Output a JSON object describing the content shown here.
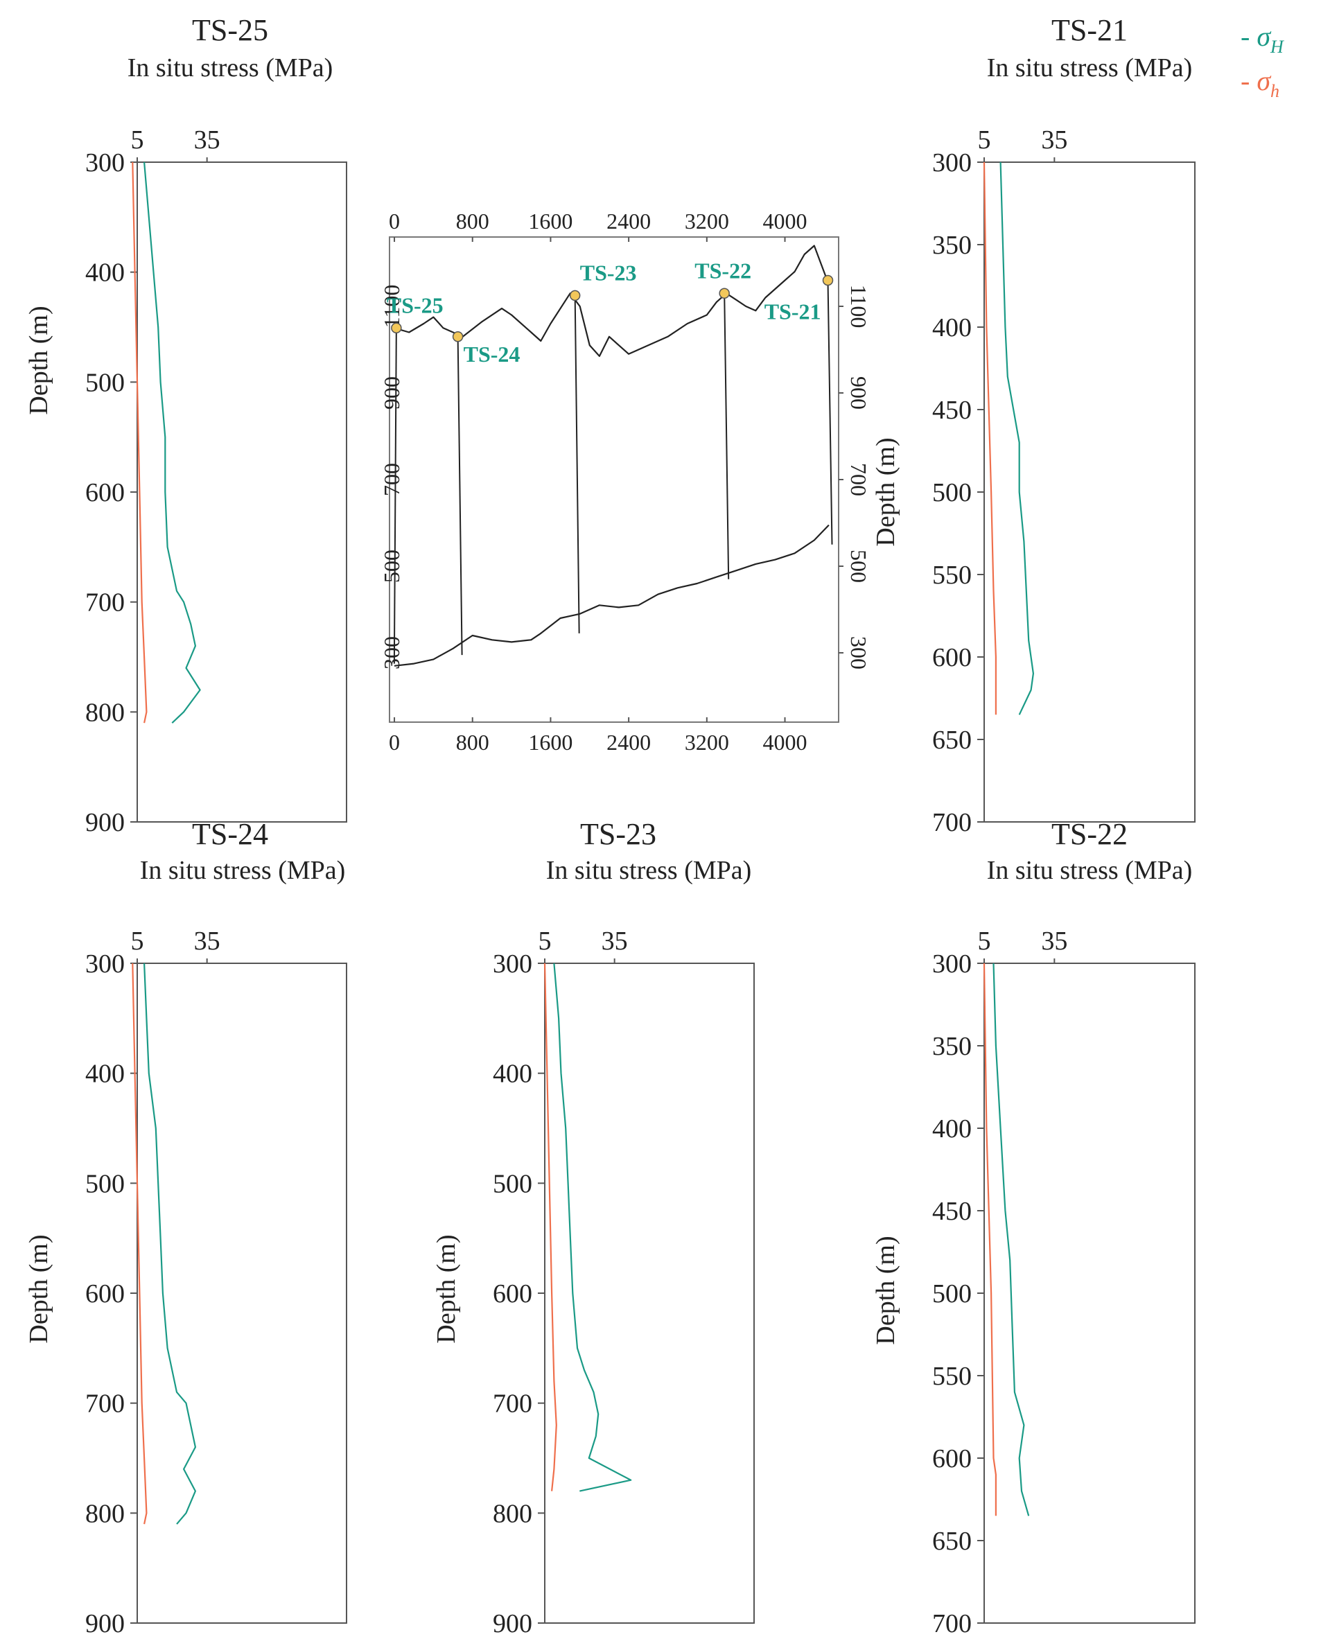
{
  "colors": {
    "sigma_H": "#1a9a86",
    "sigma_h": "#ef6f4c",
    "axis": "#333333",
    "profile": "#222222",
    "marker": "#f2c75a"
  },
  "legend": {
    "sigma_H": "- σ",
    "sigma_H_sub": "H",
    "sigma_h": "- σ",
    "sigma_h_sub": "h"
  },
  "chart_data": [
    {
      "type": "line",
      "id": "ts25",
      "title": "TS-25",
      "xlabel": "In situ stress (MPa)",
      "ylabel": "Depth (m)",
      "x_ticks": [
        "5",
        "35"
      ],
      "y_ticks": [
        "300",
        "400",
        "500",
        "600",
        "700",
        "800",
        "900"
      ],
      "xlim": [
        5,
        95
      ],
      "ylim": [
        300,
        900
      ],
      "y_inverted": true,
      "series": [
        {
          "name": "σH",
          "depth": [
            300,
            350,
            400,
            450,
            500,
            550,
            600,
            650,
            690,
            700,
            720,
            740,
            760,
            780,
            800,
            810
          ],
          "stress": [
            8,
            10,
            12,
            14,
            15,
            17,
            17,
            18,
            22,
            25,
            28,
            30,
            26,
            32,
            25,
            20
          ]
        },
        {
          "name": "σh",
          "depth": [
            300,
            400,
            500,
            600,
            700,
            750,
            800,
            810
          ],
          "stress": [
            3,
            4,
            5,
            6,
            7,
            8,
            9,
            8
          ]
        }
      ]
    },
    {
      "type": "line",
      "id": "ts21",
      "title": "TS-21",
      "xlabel": "In situ stress (MPa)",
      "ylabel": "Depth (m)",
      "x_ticks": [
        "5",
        "35"
      ],
      "y_ticks": [
        "300",
        "350",
        "400",
        "450",
        "500",
        "550",
        "600",
        "650",
        "700"
      ],
      "xlim": [
        5,
        95
      ],
      "ylim": [
        300,
        700
      ],
      "y_inverted": true,
      "series": [
        {
          "name": "σH",
          "depth": [
            300,
            350,
            400,
            430,
            470,
            500,
            530,
            560,
            590,
            610,
            620,
            635
          ],
          "stress": [
            12,
            13,
            14,
            15,
            20,
            20,
            22,
            23,
            24,
            26,
            25,
            20
          ]
        },
        {
          "name": "σh",
          "depth": [
            300,
            400,
            500,
            560,
            600,
            635
          ],
          "stress": [
            5,
            6,
            8,
            9,
            10,
            10
          ]
        }
      ]
    },
    {
      "type": "line",
      "id": "ts24",
      "title": "TS-24",
      "xlabel": "In situ stress (MPa)",
      "ylabel": "Depth (m)",
      "x_ticks": [
        "5",
        "35"
      ],
      "y_ticks": [
        "300",
        "400",
        "500",
        "600",
        "700",
        "800",
        "900"
      ],
      "xlim": [
        5,
        95
      ],
      "ylim": [
        300,
        900
      ],
      "y_inverted": true,
      "series": [
        {
          "name": "σH",
          "depth": [
            300,
            350,
            400,
            450,
            500,
            550,
            600,
            650,
            690,
            700,
            720,
            740,
            760,
            780,
            800,
            810
          ],
          "stress": [
            8,
            9,
            10,
            13,
            14,
            15,
            16,
            18,
            22,
            26,
            28,
            30,
            25,
            30,
            26,
            22
          ]
        },
        {
          "name": "σh",
          "depth": [
            300,
            400,
            500,
            600,
            700,
            750,
            800,
            810
          ],
          "stress": [
            3,
            4,
            5,
            6,
            7,
            8,
            9,
            8
          ]
        }
      ]
    },
    {
      "type": "line",
      "id": "ts23",
      "title": "TS-23",
      "xlabel": "In situ stress (MPa)",
      "ylabel": "Depth (m)",
      "x_ticks": [
        "5",
        "35"
      ],
      "y_ticks": [
        "300",
        "400",
        "500",
        "600",
        "700",
        "800",
        "900"
      ],
      "xlim": [
        5,
        95
      ],
      "ylim": [
        300,
        900
      ],
      "y_inverted": true,
      "series": [
        {
          "name": "σH",
          "depth": [
            300,
            350,
            400,
            450,
            500,
            550,
            600,
            650,
            670,
            690,
            710,
            730,
            750,
            770,
            780
          ],
          "stress": [
            9,
            11,
            12,
            14,
            15,
            16,
            17,
            19,
            22,
            26,
            28,
            27,
            24,
            42,
            20
          ]
        },
        {
          "name": "σh",
          "depth": [
            300,
            400,
            500,
            600,
            680,
            720,
            760,
            780
          ],
          "stress": [
            5,
            6,
            7,
            8,
            9,
            10,
            9,
            8
          ]
        }
      ]
    },
    {
      "type": "line",
      "id": "ts22",
      "title": "TS-22",
      "xlabel": "In situ stress (MPa)",
      "ylabel": "Depth (m)",
      "x_ticks": [
        "5",
        "35"
      ],
      "y_ticks": [
        "300",
        "350",
        "400",
        "450",
        "500",
        "550",
        "600",
        "650",
        "700"
      ],
      "xlim": [
        5,
        95
      ],
      "ylim": [
        300,
        700
      ],
      "y_inverted": true,
      "series": [
        {
          "name": "σH",
          "depth": [
            300,
            350,
            400,
            450,
            480,
            520,
            560,
            580,
            600,
            620,
            635
          ],
          "stress": [
            9,
            10,
            12,
            14,
            16,
            17,
            18,
            22,
            20,
            21,
            24
          ]
        },
        {
          "name": "σh",
          "depth": [
            300,
            400,
            500,
            600,
            610,
            635
          ],
          "stress": [
            5,
            6,
            8,
            9,
            10,
            10
          ]
        }
      ]
    },
    {
      "type": "line",
      "id": "cross_section",
      "x_ticks": [
        "0",
        "800",
        "1600",
        "2400",
        "3200",
        "4000"
      ],
      "y_ticks": [
        "300",
        "500",
        "700",
        "900",
        "1100"
      ],
      "xlim": [
        -50,
        4550
      ],
      "ylim": [
        140,
        1260
      ],
      "surface": {
        "x": [
          0,
          150,
          300,
          400,
          500,
          700,
          900,
          1100,
          1200,
          1400,
          1500,
          1600,
          1800,
          1900,
          2000,
          2100,
          2200,
          2300,
          2400,
          2600,
          2800,
          3000,
          3200,
          3300,
          3400,
          3500,
          3600,
          3700,
          3800,
          3900,
          4000,
          4100,
          4200,
          4300,
          4450
        ],
        "y": [
          1050,
          1040,
          1060,
          1075,
          1050,
          1030,
          1065,
          1095,
          1080,
          1040,
          1020,
          1060,
          1130,
          1100,
          1010,
          985,
          1030,
          1010,
          990,
          1010,
          1030,
          1060,
          1080,
          1110,
          1130,
          1115,
          1100,
          1090,
          1120,
          1140,
          1160,
          1180,
          1220,
          1240,
          1150
        ]
      },
      "base": {
        "x": [
          0,
          200,
          400,
          600,
          800,
          1000,
          1200,
          1400,
          1500,
          1700,
          1900,
          2100,
          2300,
          2500,
          2700,
          2900,
          3100,
          3300,
          3500,
          3700,
          3900,
          4100,
          4300,
          4450
        ],
        "y": [
          270,
          275,
          285,
          310,
          340,
          330,
          325,
          330,
          345,
          380,
          390,
          410,
          405,
          410,
          435,
          450,
          460,
          475,
          490,
          505,
          515,
          530,
          560,
          595
        ]
      },
      "wells": [
        {
          "name": "TS-25",
          "x": 20,
          "surface": 1050,
          "bottom": 275,
          "label_pos": "above-left"
        },
        {
          "name": "TS-24",
          "x": 650,
          "surface": 1030,
          "bottom": 295,
          "label_pos": "below-right"
        },
        {
          "name": "TS-23",
          "x": 1850,
          "surface": 1125,
          "bottom": 345,
          "label_pos": "above"
        },
        {
          "name": "TS-22",
          "x": 3380,
          "surface": 1130,
          "bottom": 470,
          "label_pos": "above-left"
        },
        {
          "name": "TS-21",
          "x": 4440,
          "surface": 1160,
          "bottom": 550,
          "label_pos": "below-left"
        }
      ]
    }
  ]
}
